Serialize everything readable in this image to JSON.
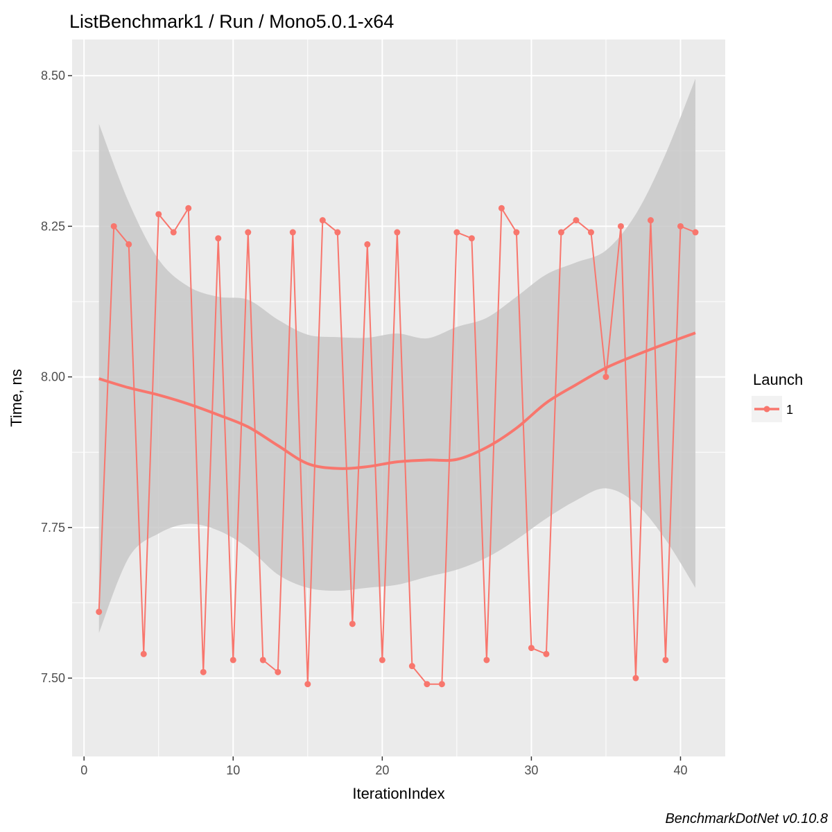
{
  "chart_data": {
    "type": "line",
    "title": "ListBenchmark1 / Run / Mono5.0.1-x64",
    "xlabel": "IterationIndex",
    "ylabel": "Time, ns",
    "caption": "BenchmarkDotNet v0.10.8",
    "xlim": [
      -0.8,
      43
    ],
    "ylim": [
      7.37,
      8.56
    ],
    "x_ticks": [
      0,
      10,
      20,
      30,
      40
    ],
    "y_ticks": [
      7.5,
      7.75,
      8.0,
      8.25,
      8.5
    ],
    "x_tick_labels": [
      "0",
      "10",
      "20",
      "30",
      "40"
    ],
    "y_tick_labels": [
      "7.50",
      "7.75",
      "8.00",
      "8.25",
      "8.50"
    ],
    "grid": true,
    "legend": {
      "title": "Launch",
      "placement": "right",
      "entries": [
        "1"
      ]
    },
    "colors": {
      "series": "#F8766D",
      "panel": "#EBEBEB",
      "ribbon": "#C8C8C8",
      "grid": "#FFFFFF"
    },
    "series": [
      {
        "name": "1",
        "x": [
          1,
          2,
          3,
          4,
          5,
          6,
          7,
          8,
          9,
          10,
          11,
          12,
          13,
          14,
          15,
          16,
          17,
          18,
          19,
          20,
          21,
          22,
          23,
          24,
          25,
          26,
          27,
          28,
          29,
          30,
          31,
          32,
          33,
          34,
          35,
          36,
          37,
          38,
          39,
          40,
          41
        ],
        "values": [
          7.61,
          8.25,
          8.22,
          7.54,
          8.27,
          8.24,
          8.28,
          7.51,
          8.23,
          7.53,
          8.24,
          7.53,
          7.51,
          8.24,
          7.49,
          8.26,
          8.24,
          7.59,
          8.22,
          7.53,
          8.24,
          7.52,
          7.49,
          7.49,
          8.24,
          8.23,
          7.53,
          8.28,
          8.24,
          7.55,
          7.54,
          8.24,
          8.26,
          8.24,
          8.0,
          8.25,
          7.5,
          8.26,
          7.53,
          8.25,
          8.24
        ]
      }
    ],
    "smooth": {
      "x": [
        1,
        3,
        5,
        7,
        9,
        11,
        13,
        15,
        17,
        19,
        21,
        23,
        25,
        27,
        29,
        31,
        33,
        35,
        37,
        39,
        41
      ],
      "values": [
        7.997,
        7.982,
        7.97,
        7.955,
        7.937,
        7.917,
        7.886,
        7.856,
        7.848,
        7.851,
        7.859,
        7.862,
        7.863,
        7.883,
        7.915,
        7.957,
        7.987,
        8.015,
        8.036,
        8.055,
        8.073
      ],
      "lower": [
        7.575,
        7.7,
        7.74,
        7.756,
        7.745,
        7.716,
        7.672,
        7.65,
        7.645,
        7.65,
        7.655,
        7.668,
        7.68,
        7.7,
        7.73,
        7.765,
        7.795,
        7.815,
        7.79,
        7.73,
        7.65
      ],
      "upper": [
        8.42,
        8.29,
        8.195,
        8.15,
        8.133,
        8.128,
        8.095,
        8.07,
        8.066,
        8.065,
        8.072,
        8.064,
        8.083,
        8.098,
        8.133,
        8.17,
        8.19,
        8.21,
        8.27,
        8.37,
        8.495
      ]
    }
  }
}
